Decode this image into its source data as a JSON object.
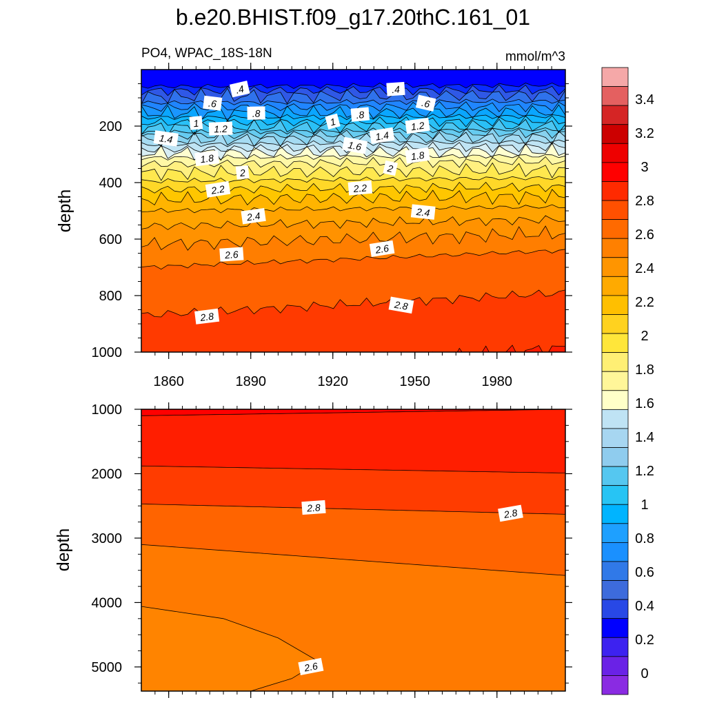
{
  "chart_data": {
    "type": "contour",
    "title": "b.e20.BHIST.f09_g17.20thC.161_01",
    "subtitle_left": "PO4, WPAC_18S-18N",
    "subtitle_right": "mmol/m^3",
    "x": {
      "label": "",
      "range": [
        1850,
        2005
      ],
      "ticks": [
        "1860",
        "1890",
        "1920",
        "1950",
        "1980"
      ]
    },
    "panels": [
      {
        "name": "upper",
        "ylabel": "depth",
        "ylim": [
          1000,
          0
        ],
        "yticks": [
          "200",
          "400",
          "600",
          "800",
          "1000"
        ],
        "contours": [
          {
            "level": "0.2",
            "d1": 60,
            "d2": 55
          },
          {
            "level": ".4",
            "d1": 75,
            "d2": 72
          },
          {
            "level": "0.5",
            "d1": 95,
            "d2": 90
          },
          {
            "level": ".6",
            "d1": 118,
            "d2": 112
          },
          {
            "level": "0.7",
            "d1": 135,
            "d2": 130
          },
          {
            "level": ".8",
            "d1": 155,
            "d2": 150
          },
          {
            "level": "0.9",
            "d1": 170,
            "d2": 165
          },
          {
            "level": "1",
            "d1": 188,
            "d2": 182
          },
          {
            "level": "1.1",
            "d1": 205,
            "d2": 198
          },
          {
            "level": "1.2",
            "d1": 222,
            "d2": 212
          },
          {
            "level": "1.3",
            "d1": 235,
            "d2": 225
          },
          {
            "level": "1.4",
            "d1": 250,
            "d2": 240
          },
          {
            "level": "1.5",
            "d1": 266,
            "d2": 255
          },
          {
            "level": "1.6",
            "d1": 283,
            "d2": 272
          },
          {
            "level": "1.7",
            "d1": 296,
            "d2": 288
          },
          {
            "level": "1.8",
            "d1": 312,
            "d2": 305
          },
          {
            "level": "1.9",
            "d1": 335,
            "d2": 325
          },
          {
            "level": "2",
            "d1": 365,
            "d2": 355
          },
          {
            "level": "2.1",
            "d1": 395,
            "d2": 383
          },
          {
            "level": "2.2",
            "d1": 425,
            "d2": 415
          },
          {
            "level": "2.3",
            "d1": 460,
            "d2": 448
          },
          {
            "level": "2.4",
            "d1": 500,
            "d2": 485
          },
          {
            "level": "2.5",
            "d1": 555,
            "d2": 530
          },
          {
            "level": "2.6",
            "d1": 620,
            "d2": 580
          },
          {
            "level": "2.7",
            "d1": 700,
            "d2": 640
          },
          {
            "level": "2.8",
            "d1": 870,
            "d2": 790
          },
          {
            "level": "2.9",
            "d1": 1100,
            "d2": 985
          }
        ],
        "labels": [
          {
            "text": ".4",
            "year": 1886,
            "depth": 70
          },
          {
            "text": ".6",
            "year": 1876,
            "depth": 120
          },
          {
            "text": ".8",
            "year": 1892,
            "depth": 155
          },
          {
            "text": "1",
            "year": 1870,
            "depth": 190
          },
          {
            "text": "1.2",
            "year": 1879,
            "depth": 210
          },
          {
            "text": "1.4",
            "year": 1859,
            "depth": 245
          },
          {
            "text": "1.8",
            "year": 1874,
            "depth": 315
          },
          {
            "text": "2",
            "year": 1887,
            "depth": 365
          },
          {
            "text": "2.2",
            "year": 1878,
            "depth": 425
          },
          {
            "text": "2.4",
            "year": 1891,
            "depth": 520
          },
          {
            "text": "2.6",
            "year": 1883,
            "depth": 655
          },
          {
            "text": "2.8",
            "year": 1874,
            "depth": 875
          },
          {
            "text": ".4",
            "year": 1943,
            "depth": 70
          },
          {
            "text": ".6",
            "year": 1954,
            "depth": 120
          },
          {
            "text": ".8",
            "year": 1930,
            "depth": 160
          },
          {
            "text": "1",
            "year": 1920,
            "depth": 185
          },
          {
            "text": "1.2",
            "year": 1951,
            "depth": 200
          },
          {
            "text": "1.4",
            "year": 1938,
            "depth": 235
          },
          {
            "text": "1.6",
            "year": 1928,
            "depth": 270
          },
          {
            "text": "1.8",
            "year": 1951,
            "depth": 305
          },
          {
            "text": "2",
            "year": 1941,
            "depth": 350
          },
          {
            "text": "2.2",
            "year": 1930,
            "depth": 420
          },
          {
            "text": "2.4",
            "year": 1953,
            "depth": 505
          },
          {
            "text": "2.6",
            "year": 1938,
            "depth": 635
          },
          {
            "text": "2.8",
            "year": 1945,
            "depth": 835
          }
        ]
      },
      {
        "name": "lower",
        "ylabel": "depth",
        "ylim": [
          5375,
          1000
        ],
        "yticks": [
          "1000",
          "2000",
          "3000",
          "4000",
          "5000"
        ],
        "contours": [
          {
            "level": "3",
            "d1": 1100,
            "d2": 1000
          },
          {
            "level": "2.9",
            "d1": 1880,
            "d2": 1990
          },
          {
            "level": "2.8",
            "d1": 2470,
            "d2": 2630
          },
          {
            "level": "2.7",
            "d1": 3100,
            "d2": 3580
          }
        ],
        "labels": [
          {
            "text": "2.8",
            "year": 1913,
            "depth": 2530
          },
          {
            "text": "2.8",
            "year": 1985,
            "depth": 2620
          },
          {
            "text": "2.6",
            "year": 1912,
            "depth": 5000
          }
        ]
      }
    ],
    "colorbar": {
      "levels": [
        "0",
        "0.2",
        "0.4",
        "0.6",
        "0.8",
        "1",
        "1.2",
        "1.4",
        "1.6",
        "1.8",
        "2",
        "2.2",
        "2.4",
        "2.6",
        "2.8",
        "3",
        "3.2",
        "3.4"
      ],
      "colors": [
        "#8a2be2",
        "#6a22e6",
        "#3d22f0",
        "#0000ff",
        "#2848e6",
        "#3d6bdc",
        "#3079e8",
        "#1a90ff",
        "#1ea0ff",
        "#00b4ff",
        "#27c4f4",
        "#55c7f0",
        "#8fccee",
        "#a7d6f1",
        "#bfe3f4",
        "#ffffc8",
        "#fff699",
        "#ffef74",
        "#ffe63a",
        "#ffd21f",
        "#ffbf00",
        "#ffaa00",
        "#ff9500",
        "#ff8000",
        "#ff6a00",
        "#ff5000",
        "#ff2a00",
        "#ff0000",
        "#ee0000",
        "#cc0000",
        "#d52525",
        "#e46060",
        "#f5a8a8"
      ]
    }
  }
}
